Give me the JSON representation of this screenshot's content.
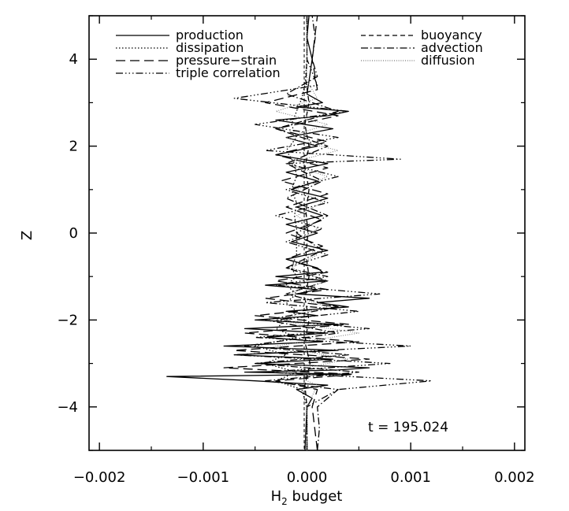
{
  "chart_data": {
    "type": "line",
    "orientation": "vertical-profile",
    "xlabel_main": "H",
    "xlabel_sub": "2",
    "xlabel_rest": " budget",
    "ylabel": "Z",
    "xlim": [
      -0.0021,
      0.0021
    ],
    "ylim": [
      -5,
      5
    ],
    "xticks": [
      -0.002,
      -0.001,
      0.0,
      0.001,
      0.002
    ],
    "xtick_labels": [
      "−0.002",
      "−0.001",
      "0.000",
      "0.001",
      "0.002"
    ],
    "yticks": [
      -4,
      -2,
      0,
      2,
      4
    ],
    "ytick_labels": [
      "−4",
      "−2",
      "0",
      "2",
      "4"
    ],
    "grid": false,
    "annotation": "t = 195.024",
    "legend_left": [
      "production",
      "dissipation",
      "pressure−strain",
      "triple correlation"
    ],
    "legend_right": [
      "buoyancy",
      "advection",
      "diffusion"
    ],
    "series": [
      {
        "name": "production",
        "style": "solid",
        "color": "#000000",
        "z": [
          -5.0,
          -4.5,
          -4.0,
          -3.8,
          -3.6,
          -3.5,
          -3.4,
          -3.3,
          -3.25,
          -3.2,
          -3.15,
          -3.1,
          -3.0,
          -2.9,
          -2.8,
          -2.7,
          -2.6,
          -2.5,
          -2.4,
          -2.3,
          -2.2,
          -2.1,
          -2.0,
          -1.9,
          -1.8,
          -1.7,
          -1.6,
          -1.5,
          -1.4,
          -1.3,
          -1.2,
          -1.1,
          -1.0,
          -0.9,
          -0.8,
          -0.6,
          -0.4,
          -0.2,
          0.0,
          0.2,
          0.4,
          0.6,
          0.8,
          1.0,
          1.2,
          1.4,
          1.6,
          1.8,
          2.0,
          2.2,
          2.4,
          2.6,
          2.7,
          2.8,
          2.9,
          3.0,
          3.2,
          3.5,
          4.0,
          4.5,
          5.0
        ],
        "x": [
          -2e-05,
          -1e-05,
          0.0,
          5e-05,
          -0.0001,
          0.0002,
          -0.0005,
          -0.00135,
          0.0004,
          -0.0006,
          0.0003,
          0.0006,
          -0.0005,
          0.00025,
          -0.0007,
          0.0003,
          -0.0008,
          0.00015,
          -0.0004,
          0.0002,
          -0.0006,
          0.0003,
          -0.0005,
          0.0001,
          -0.0002,
          0.0004,
          0.0001,
          0.0006,
          -0.0001,
          0.0001,
          -0.0004,
          0.0002,
          -0.0003,
          0.00015,
          0.0001,
          -0.0002,
          0.0002,
          -0.00015,
          0.0001,
          -0.0002,
          0.00015,
          -0.0001,
          0.0002,
          -0.00015,
          0.0001,
          -0.0002,
          0.0002,
          -0.0003,
          0.0001,
          -0.0002,
          0.00025,
          -0.0003,
          0.0002,
          0.0004,
          -0.0001,
          0.00015,
          0.0,
          2e-05,
          5e-05,
          0.0,
          2e-05
        ]
      },
      {
        "name": "dissipation",
        "style": "dotted",
        "color": "#000000",
        "z": [
          -5.0,
          -4.0,
          -3.6,
          -3.4,
          -3.2,
          -3.0,
          -2.8,
          -2.6,
          -2.4,
          -2.2,
          -2.0,
          -1.8,
          -1.6,
          -1.4,
          -1.2,
          -1.0,
          -0.8,
          -0.5,
          -0.2,
          0.1,
          0.4,
          0.7,
          1.0,
          1.3,
          1.6,
          1.9,
          2.2,
          2.5,
          2.8,
          3.1,
          3.4,
          4.0,
          5.0
        ],
        "x": [
          0.0,
          0.0,
          -5e-05,
          -0.0003,
          -0.0001,
          -0.0004,
          -0.0002,
          -0.0005,
          -0.0001,
          -0.0003,
          -0.0002,
          -0.0001,
          -0.0002,
          -0.0001,
          -0.0002,
          -0.0001,
          -0.00015,
          -0.0001,
          -0.0001,
          -0.0001,
          -0.00012,
          -0.0001,
          -0.00015,
          -0.0001,
          -0.00012,
          -0.0002,
          -0.0001,
          -0.00015,
          -0.0001,
          -5e-05,
          -2e-05,
          0.0,
          0.0
        ]
      },
      {
        "name": "pressure−strain",
        "style": "longdash",
        "color": "#000000",
        "z": [
          -5.0,
          -4.0,
          -3.6,
          -3.4,
          -3.25,
          -3.1,
          -2.9,
          -2.7,
          -2.5,
          -2.3,
          -2.1,
          -1.9,
          -1.7,
          -1.5,
          -1.3,
          -1.1,
          -0.9,
          -0.6,
          -0.3,
          0.0,
          0.3,
          0.6,
          0.9,
          1.2,
          1.5,
          1.8,
          2.1,
          2.4,
          2.7,
          3.0,
          3.3,
          4.0,
          5.0
        ],
        "x": [
          0.0001,
          5e-05,
          0.0001,
          -0.0003,
          0.00045,
          -0.0008,
          0.0006,
          -0.0007,
          0.0005,
          -0.0006,
          0.0004,
          -0.0005,
          0.0003,
          -0.0004,
          0.0002,
          -0.0003,
          0.0002,
          -0.0002,
          0.00015,
          -0.0002,
          0.00015,
          -0.0002,
          0.0002,
          -0.00025,
          0.0002,
          -0.0003,
          0.0002,
          -0.0003,
          0.0003,
          -0.0004,
          0.0001,
          5e-05,
          0.0001
        ]
      },
      {
        "name": "triple correlation",
        "style": "dashdotdotdot",
        "color": "#000000",
        "z": [
          -5.0,
          -4.0,
          -3.6,
          -3.4,
          -3.2,
          -3.0,
          -2.8,
          -2.6,
          -2.4,
          -2.2,
          -2.0,
          -1.8,
          -1.6,
          -1.4,
          -1.2,
          -1.0,
          -0.8,
          -0.5,
          -0.2,
          0.1,
          0.4,
          0.7,
          1.0,
          1.3,
          1.6,
          1.7,
          1.9,
          2.2,
          2.5,
          2.8,
          3.1,
          3.4,
          4.0,
          5.0
        ],
        "x": [
          0.0,
          0.0,
          0.0003,
          0.0012,
          -0.0004,
          0.0008,
          -0.0007,
          0.001,
          -0.0005,
          0.0006,
          -0.0003,
          0.0005,
          -0.0004,
          0.0007,
          -0.0003,
          0.0002,
          -0.0002,
          0.0002,
          -0.0002,
          0.00015,
          -0.0003,
          0.0002,
          -0.0002,
          0.0003,
          -0.0002,
          0.0009,
          -0.0004,
          0.0003,
          -0.0005,
          0.0004,
          -0.0007,
          0.0001,
          0.0,
          0.0
        ]
      },
      {
        "name": "buoyancy",
        "style": "dashed",
        "color": "#000000",
        "z": [
          -5.0,
          -4.0,
          -3.5,
          -3.0,
          -2.5,
          -2.0,
          -1.5,
          -1.0,
          -0.5,
          0.0,
          0.5,
          1.0,
          1.5,
          2.0,
          2.5,
          3.0,
          3.5,
          4.0,
          5.0
        ],
        "x": [
          0.0,
          0.0,
          -2e-05,
          3e-05,
          -2e-05,
          2e-05,
          -2e-05,
          2e-05,
          -1e-05,
          1e-05,
          -1e-05,
          2e-05,
          -2e-05,
          2e-05,
          -2e-05,
          2e-05,
          -1e-05,
          0.0,
          0.0
        ]
      },
      {
        "name": "advection",
        "style": "dashdot",
        "color": "#000000",
        "z": [
          -5.0,
          -4.5,
          -4.0,
          -3.6,
          -3.4,
          -3.2,
          -3.0,
          -2.8,
          -2.6,
          -2.3,
          -2.0,
          -1.7,
          -1.4,
          -1.1,
          -0.8,
          -0.4,
          0.0,
          0.4,
          0.8,
          1.2,
          1.6,
          2.0,
          2.4,
          2.8,
          3.2,
          3.6,
          4.0,
          4.5,
          5.0
        ],
        "x": [
          0.0001,
          0.00012,
          0.0001,
          0.0003,
          -0.0004,
          0.0005,
          -0.0005,
          0.0004,
          -0.0006,
          0.0003,
          -0.0004,
          0.0003,
          -0.0002,
          0.0002,
          -0.0002,
          0.00015,
          -0.0001,
          0.0002,
          -0.0002,
          0.00015,
          -0.0002,
          0.0002,
          -0.0003,
          0.0003,
          -0.0002,
          0.0001,
          5e-05,
          8e-05,
          5e-05
        ]
      },
      {
        "name": "diffusion",
        "style": "finedotted",
        "color": "#777777",
        "z": [
          -5.0,
          -4.0,
          -3.5,
          -3.2,
          -2.9,
          -2.6,
          -2.3,
          -2.0,
          -1.7,
          -1.4,
          -1.1,
          -0.8,
          -0.5,
          -0.2,
          0.1,
          0.4,
          0.7,
          1.0,
          1.3,
          1.6,
          1.9,
          2.2,
          2.5,
          2.8,
          3.1,
          3.5,
          4.0,
          5.0
        ],
        "x": [
          0.0,
          0.0,
          0.0001,
          -0.0002,
          0.0004,
          -0.0003,
          0.0005,
          -0.0003,
          0.0002,
          -0.0002,
          0.0002,
          -0.00015,
          0.0001,
          -0.0001,
          0.0001,
          -0.0001,
          0.00015,
          -0.0001,
          0.0002,
          -0.0002,
          0.0003,
          -0.0002,
          0.0002,
          -0.0003,
          0.0001,
          0.0,
          0.0,
          0.0
        ]
      }
    ]
  }
}
